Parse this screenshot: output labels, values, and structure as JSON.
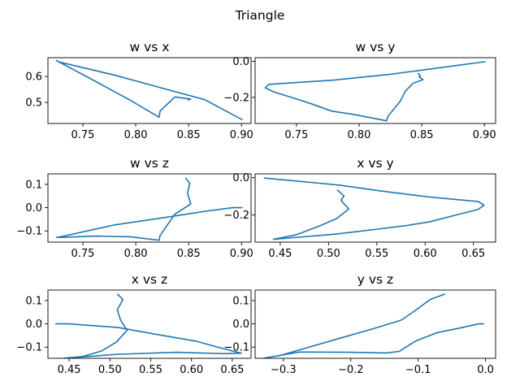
{
  "figure": {
    "suptitle": "Triangle",
    "line_color": "#1f77b4"
  },
  "chart_data": [
    {
      "type": "line",
      "title": "w vs x",
      "xlabel": "",
      "ylabel": "",
      "xlim": [
        0.717,
        0.909
      ],
      "ylim": [
        0.419,
        0.672
      ],
      "xticks": [
        0.75,
        0.8,
        0.85,
        0.9
      ],
      "xtick_labels": [
        "0.75",
        "0.80",
        "0.85",
        "0.90"
      ],
      "yticks": [
        0.5,
        0.6
      ],
      "ytick_labels": [
        "0.5",
        "0.6"
      ],
      "series": [
        {
          "x": [
            0.901,
            0.865,
            0.825,
            0.78,
            0.728,
            0.725,
            0.762,
            0.795,
            0.822,
            0.823,
            0.837,
            0.852,
            0.849
          ],
          "y": [
            0.433,
            0.511,
            0.555,
            0.605,
            0.655,
            0.661,
            0.581,
            0.508,
            0.443,
            0.467,
            0.521,
            0.513,
            0.509
          ]
        }
      ]
    },
    {
      "type": "line",
      "title": "w vs y",
      "xlabel": "",
      "ylabel": "",
      "xlim": [
        0.717,
        0.909
      ],
      "ylim": [
        -0.345,
        0.02
      ],
      "xticks": [
        0.75,
        0.8,
        0.85,
        0.9
      ],
      "xtick_labels": [
        "0.75",
        "0.80",
        "0.85",
        "0.90"
      ],
      "yticks": [
        -0.2,
        0.0
      ],
      "ytick_labels": [
        "−0.2",
        "0.0"
      ],
      "series": [
        {
          "x": [
            0.901,
            0.865,
            0.825,
            0.78,
            0.728,
            0.725,
            0.732,
            0.745,
            0.762,
            0.778,
            0.795,
            0.822,
            0.823,
            0.833,
            0.837,
            0.843,
            0.851,
            0.848,
            0.849,
            0.847
          ],
          "y": [
            -0.002,
            -0.035,
            -0.072,
            -0.104,
            -0.128,
            -0.147,
            -0.17,
            -0.198,
            -0.236,
            -0.276,
            -0.294,
            -0.33,
            -0.305,
            -0.22,
            -0.165,
            -0.122,
            -0.102,
            -0.087,
            -0.082,
            -0.065
          ]
        }
      ]
    },
    {
      "type": "line",
      "title": "w vs z",
      "xlabel": "",
      "ylabel": "",
      "xlim": [
        0.717,
        0.909
      ],
      "ylim": [
        -0.148,
        0.145
      ],
      "xticks": [
        0.75,
        0.8,
        0.85,
        0.9
      ],
      "xtick_labels": [
        "0.75",
        "0.80",
        "0.85",
        "0.90"
      ],
      "yticks": [
        -0.1,
        0.0,
        0.1
      ],
      "ytick_labels": [
        "−0.1",
        "0.0",
        "0.1"
      ],
      "series": [
        {
          "x": [
            0.901,
            0.892,
            0.865,
            0.825,
            0.78,
            0.728,
            0.725,
            0.762,
            0.795,
            0.822,
            0.823,
            0.837,
            0.852,
            0.849,
            0.851,
            0.847
          ],
          "y": [
            0.0,
            0.0,
            -0.016,
            -0.044,
            -0.074,
            -0.126,
            -0.128,
            -0.122,
            -0.125,
            -0.14,
            -0.12,
            -0.028,
            0.016,
            0.062,
            0.105,
            0.128
          ]
        }
      ]
    },
    {
      "type": "line",
      "title": "x vs y",
      "xlabel": "",
      "ylabel": "",
      "xlim": [
        0.424,
        0.673
      ],
      "ylim": [
        -0.345,
        0.02
      ],
      "xticks": [
        0.45,
        0.5,
        0.55,
        0.6,
        0.65
      ],
      "xtick_labels": [
        "0.45",
        "0.50",
        "0.55",
        "0.60",
        "0.65"
      ],
      "yticks": [
        -0.2,
        0.0
      ],
      "ytick_labels": [
        "−0.2",
        "0.0"
      ],
      "series": [
        {
          "x": [
            0.433,
            0.511,
            0.555,
            0.605,
            0.655,
            0.661,
            0.655,
            0.632,
            0.605,
            0.581,
            0.55,
            0.508,
            0.443,
            0.467,
            0.49,
            0.508,
            0.521,
            0.513,
            0.516,
            0.509
          ],
          "y": [
            -0.002,
            -0.04,
            -0.072,
            -0.104,
            -0.128,
            -0.147,
            -0.17,
            -0.2,
            -0.236,
            -0.256,
            -0.276,
            -0.302,
            -0.33,
            -0.305,
            -0.26,
            -0.22,
            -0.168,
            -0.122,
            -0.098,
            -0.065
          ]
        }
      ]
    },
    {
      "type": "line",
      "title": "x vs z",
      "xlabel": "",
      "ylabel": "",
      "xlim": [
        0.424,
        0.673
      ],
      "ylim": [
        -0.148,
        0.145
      ],
      "xticks": [
        0.45,
        0.5,
        0.55,
        0.6,
        0.65
      ],
      "xtick_labels": [
        "0.45",
        "0.50",
        "0.55",
        "0.60",
        "0.65"
      ],
      "yticks": [
        -0.1,
        0.0,
        0.1
      ],
      "ytick_labels": [
        "−0.1",
        "0.0",
        "0.1"
      ],
      "series": [
        {
          "x": [
            0.433,
            0.45,
            0.511,
            0.555,
            0.605,
            0.632,
            0.661,
            0.64,
            0.581,
            0.508,
            0.443,
            0.467,
            0.49,
            0.508,
            0.521,
            0.513,
            0.509,
            0.516,
            0.509
          ],
          "y": [
            0.0,
            0.0,
            -0.016,
            -0.044,
            -0.074,
            -0.1,
            -0.126,
            -0.128,
            -0.122,
            -0.131,
            -0.148,
            -0.14,
            -0.116,
            -0.078,
            -0.028,
            0.016,
            0.06,
            0.105,
            0.128
          ]
        }
      ]
    },
    {
      "type": "line",
      "title": "y vs z",
      "xlabel": "",
      "ylabel": "",
      "xlim": [
        -0.342,
        0.015
      ],
      "ylim": [
        -0.148,
        0.145
      ],
      "xticks": [
        -0.3,
        -0.2,
        -0.1,
        0.0
      ],
      "xtick_labels": [
        "−0.3",
        "−0.2",
        "−0.1",
        "0.0"
      ],
      "yticks": [
        -0.1,
        0.0,
        0.1
      ],
      "ytick_labels": [
        "−0.1",
        "0.0",
        "0.1"
      ],
      "series": [
        {
          "x": [
            -0.002,
            -0.01,
            -0.035,
            -0.072,
            -0.104,
            -0.128,
            -0.147,
            -0.2,
            -0.276,
            -0.33,
            -0.305,
            -0.22,
            -0.168,
            -0.125,
            -0.102,
            -0.082,
            -0.06
          ],
          "y": [
            0.0,
            0.0,
            -0.016,
            -0.038,
            -0.074,
            -0.118,
            -0.125,
            -0.122,
            -0.121,
            -0.148,
            -0.136,
            -0.065,
            -0.022,
            0.016,
            0.062,
            0.105,
            0.128
          ]
        }
      ]
    }
  ]
}
